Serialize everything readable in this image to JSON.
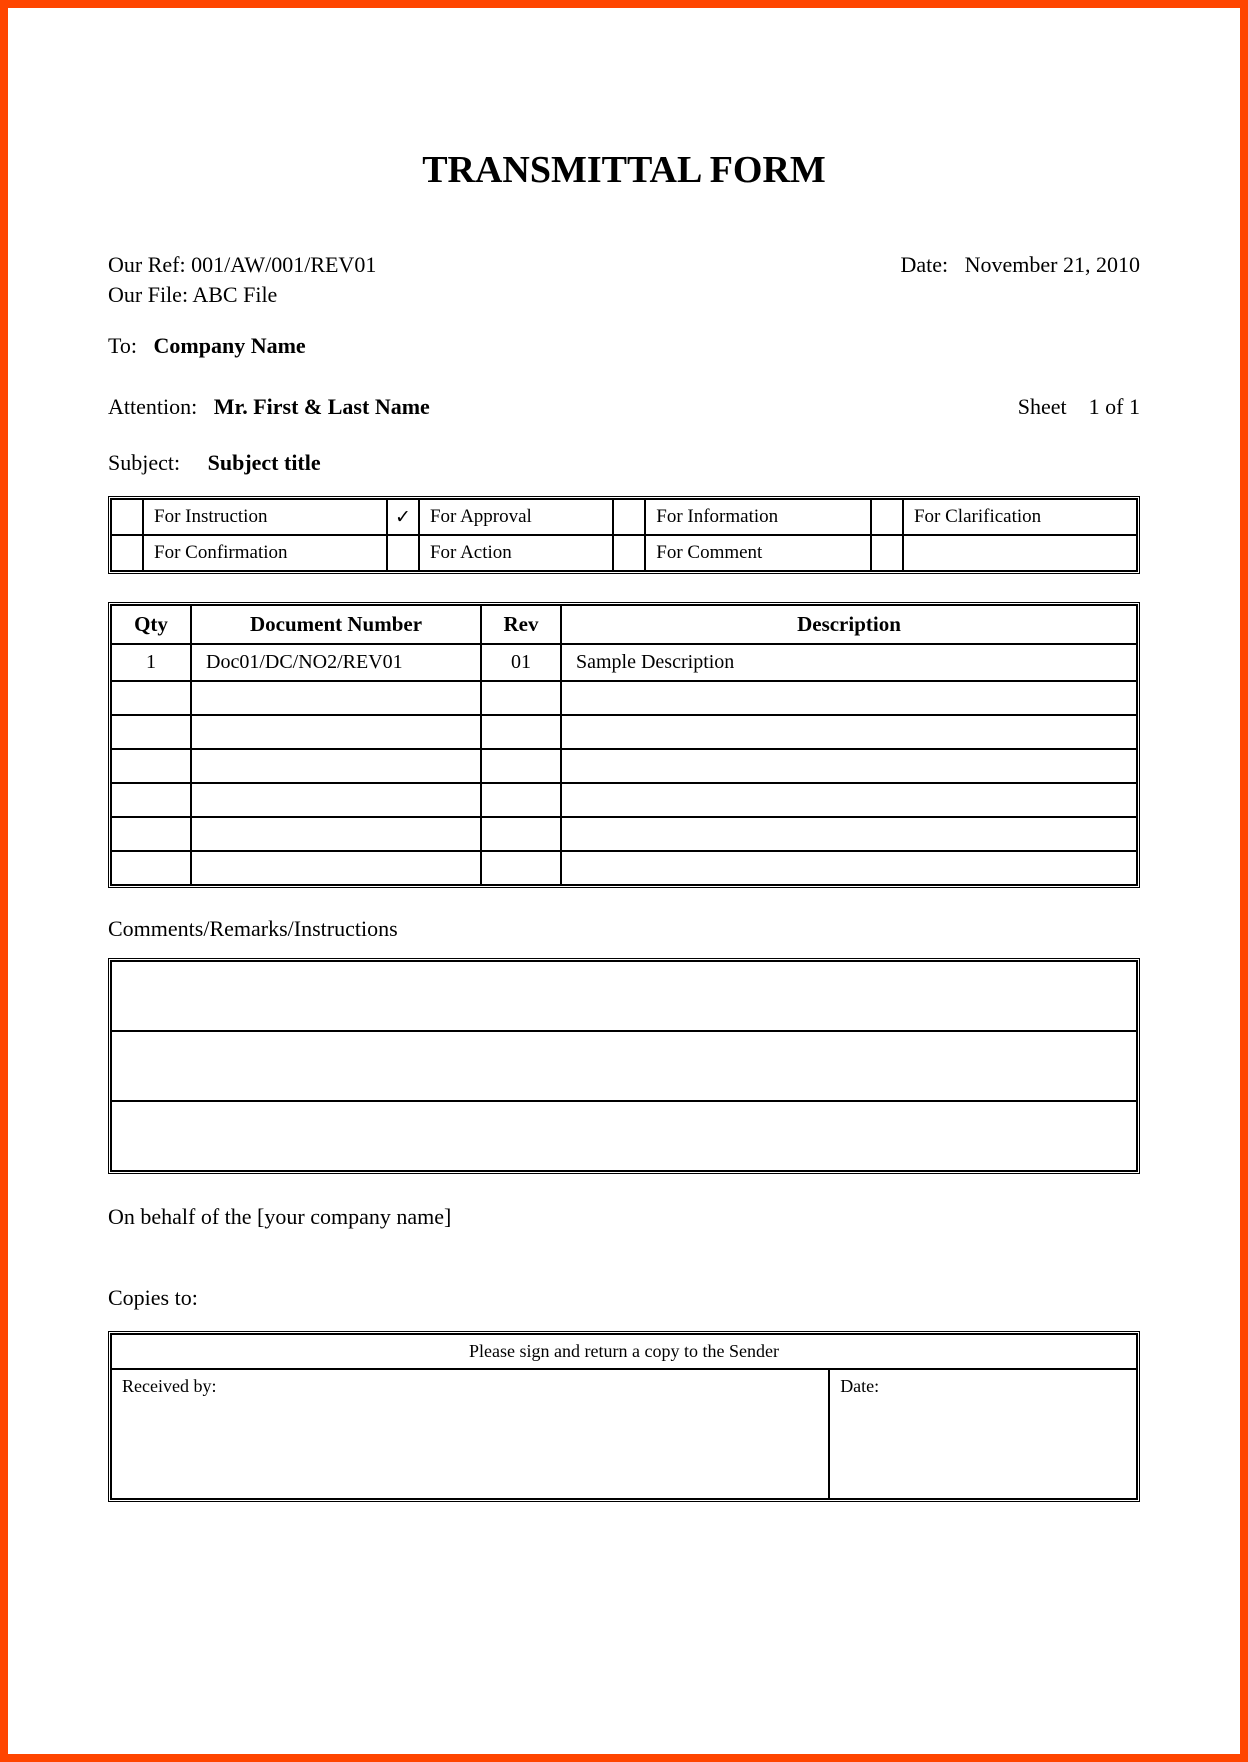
{
  "title": "TRANSMITTAL FORM",
  "header": {
    "our_ref_label": "Our Ref:",
    "our_ref_value": "001/AW/001/REV01",
    "date_label": "Date:",
    "date_value": "November 21, 2010",
    "our_file_label": "Our File:",
    "our_file_value": "ABC File",
    "to_label": "To:",
    "to_value": "Company Name",
    "attention_label": "Attention:",
    "attention_value": "Mr. First & Last Name",
    "sheet_label": "Sheet",
    "sheet_value": "1 of 1",
    "subject_label": "Subject:",
    "subject_value": "Subject title"
  },
  "purpose": {
    "row1": {
      "c1_check": "",
      "c1_label": "For Instruction",
      "c2_check": "✓",
      "c2_label": "For Approval",
      "c3_check": "",
      "c3_label": "For Information",
      "c4_check": "",
      "c4_label": "For Clarification"
    },
    "row2": {
      "c1_check": "",
      "c1_label": "For Confirmation",
      "c2_check": "",
      "c2_label": "For Action",
      "c3_check": "",
      "c3_label": "For Comment",
      "c4_check": "",
      "c4_label": ""
    }
  },
  "doc_table": {
    "headers": {
      "qty": "Qty",
      "docnum": "Document Number",
      "rev": "Rev",
      "desc": "Description"
    },
    "rows": [
      {
        "qty": "1",
        "docnum": "Doc01/DC/NO2/REV01",
        "rev": "01",
        "desc": "Sample Description"
      },
      {
        "qty": "",
        "docnum": "",
        "rev": "",
        "desc": ""
      },
      {
        "qty": "",
        "docnum": "",
        "rev": "",
        "desc": ""
      },
      {
        "qty": "",
        "docnum": "",
        "rev": "",
        "desc": ""
      },
      {
        "qty": "",
        "docnum": "",
        "rev": "",
        "desc": ""
      },
      {
        "qty": "",
        "docnum": "",
        "rev": "",
        "desc": ""
      },
      {
        "qty": "",
        "docnum": "",
        "rev": "",
        "desc": ""
      }
    ]
  },
  "comments_label": "Comments/Remarks/Instructions",
  "behalf_text": "On behalf of the [your company name]",
  "copies_label": "Copies to:",
  "signature": {
    "header": "Please sign and return a copy to the Sender",
    "received_by_label": "Received by:",
    "date_label": "Date:"
  },
  "style": {
    "border_color": "#ff4500",
    "text_color": "#000000",
    "background": "#ffffff",
    "font_family": "Times New Roman",
    "title_fontsize": 38,
    "body_fontsize": 22,
    "table_fontsize": 20,
    "small_fontsize": 18
  }
}
